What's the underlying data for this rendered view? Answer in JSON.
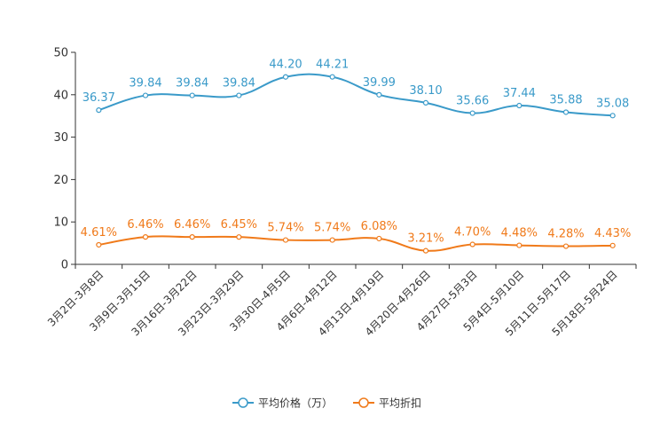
{
  "chart_data": {
    "type": "line",
    "categories": [
      "3月2日-3月8日",
      "3月9日-3月15日",
      "3月16日-3月22日",
      "3月23日-3月29日",
      "3月30日-4月5日",
      "4月6日-4月12日",
      "4月13日-4月19日",
      "4月20日-4月26日",
      "4月27日-5月3日",
      "5月4日-5月10日",
      "5月11日-5月17日",
      "5月18日-5月24日"
    ],
    "ylim": [
      0,
      50
    ],
    "yticks": [
      0,
      10,
      20,
      30,
      40,
      50
    ],
    "series": [
      {
        "name": "平均价格（万）",
        "color": "#3a9ac9",
        "values": [
          36.37,
          39.84,
          39.84,
          39.84,
          44.2,
          44.21,
          39.99,
          38.1,
          35.66,
          37.44,
          35.88,
          35.08
        ],
        "labels": [
          "36.37",
          "39.84",
          "39.84",
          "39.84",
          "44.20",
          "44.21",
          "39.99",
          "38.10",
          "35.66",
          "37.44",
          "35.88",
          "35.08"
        ]
      },
      {
        "name": "平均折扣",
        "color": "#f07a1a",
        "values": [
          4.61,
          6.46,
          6.46,
          6.45,
          5.74,
          5.74,
          6.08,
          3.21,
          4.7,
          4.48,
          4.28,
          4.43
        ],
        "labels": [
          "4.61%",
          "6.46%",
          "6.46%",
          "6.45%",
          "5.74%",
          "5.74%",
          "6.08%",
          "3.21%",
          "4.70%",
          "4.48%",
          "4.28%",
          "4.43%"
        ]
      }
    ]
  }
}
